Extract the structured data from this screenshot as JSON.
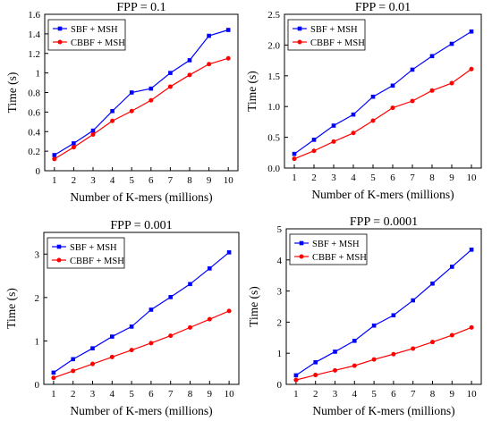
{
  "chart_data": [
    {
      "type": "line",
      "title": "FPP = 0.1",
      "xlabel": "Number of K-mers (millions)",
      "ylabel": "Time (s)",
      "x": [
        1,
        2,
        3,
        4,
        5,
        6,
        7,
        8,
        9,
        10
      ],
      "xlim": [
        0.5,
        10.5
      ],
      "ylim": [
        0,
        1.6
      ],
      "yticks": [
        "0",
        "0.2",
        "0.4",
        "0.6",
        "0.8",
        "1",
        "1.2",
        "1.4",
        "1.6"
      ],
      "legend_position": "top-left",
      "series": [
        {
          "name": "SBF + MSH",
          "color": "#0000ff",
          "marker": "square",
          "values": [
            0.16,
            0.28,
            0.41,
            0.61,
            0.8,
            0.84,
            1.0,
            1.13,
            1.38,
            1.44
          ]
        },
        {
          "name": "CBBF + MSH",
          "color": "#ff0000",
          "marker": "circle",
          "values": [
            0.12,
            0.24,
            0.37,
            0.51,
            0.61,
            0.72,
            0.86,
            0.98,
            1.09,
            1.15
          ]
        }
      ]
    },
    {
      "type": "line",
      "title": "FPP = 0.01",
      "xlabel": "Number of K-mers (millions)",
      "ylabel": "Time (s)",
      "x": [
        1,
        2,
        3,
        4,
        5,
        6,
        7,
        8,
        9,
        10
      ],
      "xlim": [
        0.5,
        10.5
      ],
      "ylim": [
        0,
        2.5
      ],
      "yticks": [
        "0.0",
        "0.5",
        "1.0",
        "1.5",
        "2.0",
        "2.5"
      ],
      "legend_position": "top-left",
      "series": [
        {
          "name": "SBF + MSH",
          "color": "#0000ff",
          "marker": "square",
          "values": [
            0.23,
            0.46,
            0.69,
            0.87,
            1.16,
            1.34,
            1.6,
            1.82,
            2.02,
            2.22
          ]
        },
        {
          "name": "CBBF + MSH",
          "color": "#ff0000",
          "marker": "circle",
          "values": [
            0.15,
            0.28,
            0.43,
            0.57,
            0.77,
            0.98,
            1.09,
            1.26,
            1.38,
            1.61
          ]
        }
      ]
    },
    {
      "type": "line",
      "title": "FPP = 0.001",
      "xlabel": "Number of K-mers (millions)",
      "ylabel": "Time (s)",
      "x": [
        1,
        2,
        3,
        4,
        5,
        6,
        7,
        8,
        9,
        10
      ],
      "xlim": [
        0.5,
        10.5
      ],
      "ylim": [
        0,
        3.5
      ],
      "yticks": [
        "0",
        "1",
        "2",
        "3"
      ],
      "legend_position": "top-left",
      "series": [
        {
          "name": "SBF + MSH",
          "color": "#0000ff",
          "marker": "square",
          "values": [
            0.27,
            0.58,
            0.83,
            1.1,
            1.33,
            1.72,
            2.01,
            2.31,
            2.67,
            3.04
          ]
        },
        {
          "name": "CBBF + MSH",
          "color": "#ff0000",
          "marker": "circle",
          "values": [
            0.15,
            0.31,
            0.47,
            0.63,
            0.79,
            0.95,
            1.12,
            1.31,
            1.5,
            1.69
          ]
        }
      ]
    },
    {
      "type": "line",
      "title": "FPP = 0.0001",
      "xlabel": "Number of K-mers (millions)",
      "ylabel": "Time (s)",
      "x": [
        1,
        2,
        3,
        4,
        5,
        6,
        7,
        8,
        9,
        10
      ],
      "xlim": [
        0.5,
        10.5
      ],
      "ylim": [
        0,
        5
      ],
      "yticks": [
        "0",
        "1",
        "2",
        "3",
        "4",
        "5"
      ],
      "legend_position": "top-left",
      "series": [
        {
          "name": "SBF + MSH",
          "color": "#0000ff",
          "marker": "square",
          "values": [
            0.29,
            0.71,
            1.05,
            1.4,
            1.89,
            2.22,
            2.7,
            3.24,
            3.78,
            4.33
          ]
        },
        {
          "name": "CBBF + MSH",
          "color": "#ff0000",
          "marker": "circle",
          "values": [
            0.14,
            0.3,
            0.45,
            0.6,
            0.8,
            0.97,
            1.15,
            1.36,
            1.58,
            1.83
          ]
        }
      ]
    }
  ]
}
